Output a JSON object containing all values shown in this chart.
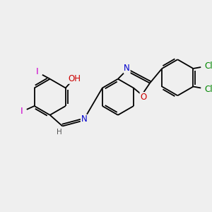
{
  "bg_color": "#efefef",
  "bond_color": "#000000",
  "atom_colors": {
    "I": "#cc00cc",
    "O_phenol": "#cc0000",
    "O_oxazole": "#cc0000",
    "N": "#0000cc",
    "Cl": "#008800",
    "C": "#000000",
    "H": "#555555"
  },
  "lw": 1.3,
  "dbl_sep": 2.8,
  "fs": 8.5
}
